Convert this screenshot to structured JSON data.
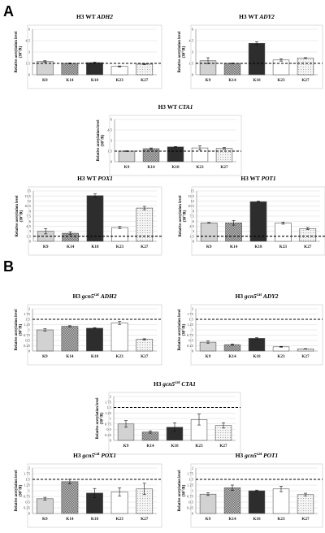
{
  "panels": [
    {
      "letter": "A"
    },
    {
      "letter": "B"
    }
  ],
  "styles": {
    "K9": {
      "fill": "#d2d2d2",
      "pattern": "solid"
    },
    "K14": {
      "fill": "#9a9a9a",
      "pattern": "check"
    },
    "K18": {
      "fill": "#2d2d2d",
      "pattern": "solid"
    },
    "K23": {
      "fill": "#ffffff",
      "pattern": "solid"
    },
    "K27": {
      "fill": "#efefef",
      "pattern": "dots"
    }
  },
  "chart_data": [
    {
      "type": "bar",
      "panel": "A",
      "title_prefix": "H3 WT ",
      "title_sup": "",
      "title_gene": "ADH2",
      "ylabel": [
        "Relative acetylation level",
        "(30°/R)"
      ],
      "categories": [
        "K9",
        "K14",
        "K18",
        "K23",
        "K27"
      ],
      "values": [
        1.75,
        1.5,
        1.6,
        1.1,
        1.4
      ],
      "errors": [
        0.1,
        0.06,
        0.08,
        0.06,
        0.06
      ],
      "ylim": [
        0,
        6
      ],
      "yticks": [
        0,
        1.5,
        3,
        4.5,
        6
      ],
      "ticklabels": [
        "0",
        "1.5",
        "3",
        "4.5",
        "6"
      ],
      "threshold": 1.5
    },
    {
      "type": "bar",
      "panel": "A",
      "title_prefix": "H3 WT ",
      "title_sup": "",
      "title_gene": "ADY2",
      "ylabel": [
        "Relative acetylation level",
        "(30°/R)"
      ],
      "categories": [
        "K9",
        "K14",
        "K18",
        "K23",
        "K27"
      ],
      "values": [
        1.85,
        1.5,
        4.15,
        1.95,
        2.2
      ],
      "errors": [
        0.4,
        0.05,
        0.2,
        0.15,
        0.05
      ],
      "ylim": [
        0,
        6
      ],
      "yticks": [
        0,
        1.5,
        3,
        4.5,
        6
      ],
      "ticklabels": [
        "0",
        "1.5",
        "3",
        "4.5",
        "6"
      ],
      "threshold": 1.5
    },
    {
      "type": "bar",
      "panel": "A",
      "title_prefix": "H3 WT ",
      "title_sup": "",
      "title_gene": "CTA1",
      "ylabel": [
        "Relative acetylation level",
        "(30°/R)"
      ],
      "categories": [
        "K9",
        "K14",
        "K18",
        "K23",
        "K27"
      ],
      "values": [
        1.5,
        1.85,
        2.1,
        1.95,
        1.9
      ],
      "errors": [
        0.05,
        0.1,
        0.05,
        0.3,
        0.1
      ],
      "ylim": [
        0,
        6
      ],
      "yticks": [
        0,
        1.5,
        3,
        4.5,
        6
      ],
      "ticklabels": [
        "0",
        "1.5",
        "3",
        "4.5",
        "6"
      ],
      "threshold": 1.5
    },
    {
      "type": "bar",
      "panel": "A",
      "title_prefix": "H3 WT ",
      "title_sup": "",
      "title_gene": "POX1",
      "ylabel": [
        "Relative acetylation level",
        "(30°/R)"
      ],
      "categories": [
        "K9",
        "K14",
        "K18",
        "K23",
        "K27"
      ],
      "values": [
        3.0,
        2.4,
        13.6,
        4.1,
        9.9
      ],
      "errors": [
        0.8,
        0.4,
        0.5,
        0.3,
        0.5
      ],
      "ylim": [
        0,
        15
      ],
      "yticks": [
        0,
        1.5,
        3,
        4.5,
        6,
        7.5,
        9,
        10.5,
        12,
        13.5,
        15
      ],
      "ticklabels": [
        "0",
        "1.5",
        "3",
        "4.5",
        "6",
        "7.5",
        "9",
        "10.5",
        "12",
        "13.5",
        "15"
      ],
      "threshold": 1.5
    },
    {
      "type": "bar",
      "panel": "A",
      "title_prefix": "H3 WT ",
      "title_sup": "",
      "title_gene": "POT1",
      "ylabel": [
        "Relative acetylation level",
        "(30°/R)"
      ],
      "categories": [
        "K9",
        "K14",
        "K18",
        "K23",
        "K27"
      ],
      "values": [
        5.5,
        5.5,
        11.8,
        5.4,
        3.8
      ],
      "errors": [
        0.1,
        0.7,
        0.2,
        0.3,
        0.3
      ],
      "ylim": [
        0,
        15
      ],
      "yticks": [
        0,
        1.5,
        3,
        4.5,
        6,
        7.5,
        9,
        10.5,
        12,
        13.5,
        15
      ],
      "ticklabels": [
        "0",
        "1.5",
        "3",
        "4.5",
        "6",
        "7.5",
        "9",
        "10.5",
        "12",
        "13.5",
        "15"
      ],
      "threshold": 1.5
    },
    {
      "type": "bar",
      "panel": "B",
      "title_prefix": "H3 ",
      "title_sup": "cat",
      "title_gene": "ADH2",
      "title_mid": "gcn5",
      "ylabel": [
        "Relative acetylation level",
        "(30°/R)"
      ],
      "categories": [
        "K9",
        "K14",
        "K18",
        "K23",
        "K27"
      ],
      "values": [
        1.0,
        1.17,
        1.08,
        1.33,
        0.55
      ],
      "errors": [
        0.05,
        0.03,
        0.03,
        0.07,
        0.03
      ],
      "ylim": [
        0,
        2
      ],
      "yticks": [
        0,
        0.25,
        0.5,
        0.75,
        1,
        1.25,
        1.5,
        1.75,
        2
      ],
      "ticklabels": [
        "0",
        "0.25",
        "0.5",
        "0.75",
        "1",
        "1.25",
        "1.5",
        "1.75",
        "2"
      ],
      "threshold": 1.5
    },
    {
      "type": "bar",
      "panel": "B",
      "title_prefix": "H3 ",
      "title_sup": "cat",
      "title_gene": "ADY2",
      "title_mid": "gcn5",
      "ylabel": [
        "Relative acetylation level",
        "(30°/R)"
      ],
      "categories": [
        "K9",
        "K14",
        "K18",
        "K23",
        "K27"
      ],
      "values": [
        0.42,
        0.3,
        0.6,
        0.2,
        0.1
      ],
      "errors": [
        0.05,
        0.03,
        0.03,
        0.02,
        0.01
      ],
      "ylim": [
        0,
        2
      ],
      "yticks": [
        0,
        0.25,
        0.5,
        0.75,
        1,
        1.25,
        1.5,
        1.75,
        2
      ],
      "ticklabels": [
        "0",
        "0.25",
        "0.5",
        "0.75",
        "1",
        "1.25",
        "1.5",
        "1.75",
        "2"
      ],
      "threshold": 1.5
    },
    {
      "type": "bar",
      "panel": "B",
      "title_prefix": "H3 ",
      "title_sup": "cat",
      "title_gene": "CTA1",
      "title_mid": "gcn5",
      "ylabel": [
        "Relative acetylation level",
        "(30°/R)"
      ],
      "categories": [
        "K9",
        "K14",
        "K18",
        "K23",
        "K27"
      ],
      "values": [
        0.75,
        0.38,
        0.6,
        0.95,
        0.68
      ],
      "errors": [
        0.15,
        0.05,
        0.2,
        0.25,
        0.12
      ],
      "ylim": [
        0,
        2
      ],
      "yticks": [
        0,
        0.25,
        0.5,
        0.75,
        1,
        1.25,
        1.5,
        1.75,
        2
      ],
      "ticklabels": [
        "0",
        "0.25",
        "0.5",
        "0.75",
        "1",
        "1.25",
        "1.5",
        "1.75",
        "2"
      ],
      "threshold": 1.5
    },
    {
      "type": "bar",
      "panel": "B",
      "title_prefix": "H3 ",
      "title_sup": "cat",
      "title_gene": "POX1",
      "title_mid": "gcn5",
      "ylabel": [
        "Relative acetylation level",
        "(30°/R)"
      ],
      "categories": [
        "K9",
        "K14",
        "K18",
        "K23",
        "K27"
      ],
      "values": [
        0.65,
        1.4,
        0.9,
        0.95,
        1.08
      ],
      "errors": [
        0.06,
        0.1,
        0.2,
        0.18,
        0.25
      ],
      "ylim": [
        0,
        2
      ],
      "yticks": [
        0,
        0.25,
        0.5,
        0.75,
        1,
        1.25,
        1.5,
        1.75,
        2
      ],
      "ticklabels": [
        "0",
        "0.25",
        "0.5",
        "0.75",
        "1",
        "1.25",
        "1.5",
        "1.75",
        "2"
      ],
      "threshold": 1.5
    },
    {
      "type": "bar",
      "panel": "B",
      "title_prefix": "H3 ",
      "title_sup": "cat",
      "title_gene": "POT1",
      "title_mid": "gcn5",
      "ylabel": [
        "Relative acetylation level",
        "(30°/R)"
      ],
      "categories": [
        "K9",
        "K14",
        "K18",
        "K23",
        "K27"
      ],
      "values": [
        0.85,
        1.13,
        1.0,
        1.08,
        0.83
      ],
      "errors": [
        0.06,
        0.12,
        0.03,
        0.12,
        0.06
      ],
      "ylim": [
        0,
        2
      ],
      "yticks": [
        0,
        0.25,
        0.5,
        0.75,
        1,
        1.25,
        1.5,
        1.75,
        2
      ],
      "ticklabels": [
        "0",
        "0.25",
        "0.5",
        "0.75",
        "1",
        "1.25",
        "1.5",
        "1.75",
        "2"
      ],
      "threshold": 1.5
    }
  ]
}
